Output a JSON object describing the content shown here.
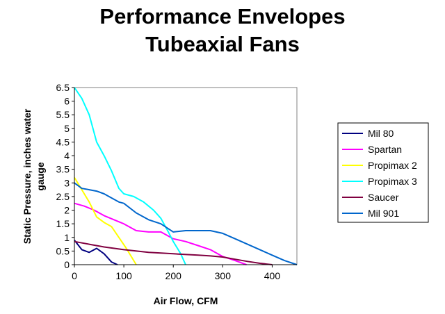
{
  "title_line1": "Performance Envelopes",
  "title_line2": "Tubeaxial Fans",
  "chart_data": {
    "type": "line",
    "title": "Performance Envelopes Tubeaxial Fans",
    "xlabel": "Air Flow, CFM",
    "ylabel_lines": [
      "Static Pressure, inches water",
      "gauge"
    ],
    "xlim": [
      0,
      450
    ],
    "ylim": [
      0,
      6.5
    ],
    "x_ticks": [
      "0",
      "100",
      "200",
      "300",
      "400"
    ],
    "x_tick_values": [
      0,
      100,
      200,
      300,
      400
    ],
    "y_ticks": [
      "0",
      "0.5",
      "1",
      "1.5",
      "2",
      "2.5",
      "3",
      "3.5",
      "4",
      "4.5",
      "5",
      "5.5",
      "6",
      "6.5"
    ],
    "y_tick_values": [
      0,
      0.5,
      1,
      1.5,
      2,
      2.5,
      3,
      3.5,
      4,
      4.5,
      5,
      5.5,
      6,
      6.5
    ],
    "grid": false,
    "legend_position": "right",
    "series": [
      {
        "name": "Mil 80",
        "color": "#000080",
        "points": [
          [
            0,
            0.9
          ],
          [
            15,
            0.55
          ],
          [
            30,
            0.45
          ],
          [
            45,
            0.6
          ],
          [
            60,
            0.4
          ],
          [
            75,
            0.1
          ],
          [
            87,
            0
          ]
        ]
      },
      {
        "name": "Spartan",
        "color": "#ff00ff",
        "points": [
          [
            0,
            2.25
          ],
          [
            20,
            2.15
          ],
          [
            40,
            2.0
          ],
          [
            60,
            1.8
          ],
          [
            80,
            1.65
          ],
          [
            100,
            1.5
          ],
          [
            125,
            1.25
          ],
          [
            150,
            1.2
          ],
          [
            175,
            1.2
          ],
          [
            200,
            0.95
          ],
          [
            225,
            0.85
          ],
          [
            250,
            0.7
          ],
          [
            275,
            0.55
          ],
          [
            300,
            0.3
          ],
          [
            325,
            0.15
          ],
          [
            348,
            0
          ]
        ]
      },
      {
        "name": "Propimax 2",
        "color": "#ffff00",
        "points": [
          [
            0,
            3.2
          ],
          [
            15,
            2.75
          ],
          [
            30,
            2.3
          ],
          [
            45,
            1.75
          ],
          [
            60,
            1.55
          ],
          [
            75,
            1.4
          ],
          [
            90,
            1.0
          ],
          [
            105,
            0.6
          ],
          [
            125,
            0
          ]
        ]
      },
      {
        "name": "Propimax 3",
        "color": "#00ffff",
        "points": [
          [
            0,
            6.5
          ],
          [
            15,
            6.1
          ],
          [
            30,
            5.5
          ],
          [
            45,
            4.5
          ],
          [
            60,
            4.0
          ],
          [
            75,
            3.45
          ],
          [
            90,
            2.8
          ],
          [
            100,
            2.6
          ],
          [
            120,
            2.5
          ],
          [
            140,
            2.3
          ],
          [
            160,
            2.0
          ],
          [
            175,
            1.7
          ],
          [
            190,
            1.2
          ],
          [
            200,
            0.85
          ],
          [
            215,
            0.4
          ],
          [
            225,
            0
          ]
        ]
      },
      {
        "name": "Saucer",
        "color": "#800040",
        "points": [
          [
            0,
            0.85
          ],
          [
            30,
            0.75
          ],
          [
            60,
            0.65
          ],
          [
            100,
            0.55
          ],
          [
            150,
            0.45
          ],
          [
            200,
            0.4
          ],
          [
            250,
            0.35
          ],
          [
            275,
            0.32
          ],
          [
            300,
            0.28
          ],
          [
            325,
            0.2
          ],
          [
            350,
            0.12
          ],
          [
            375,
            0.05
          ],
          [
            400,
            0
          ]
        ]
      },
      {
        "name": "Mil 901",
        "color": "#0066cc",
        "points": [
          [
            0,
            3.0
          ],
          [
            15,
            2.8
          ],
          [
            30,
            2.75
          ],
          [
            45,
            2.7
          ],
          [
            60,
            2.6
          ],
          [
            75,
            2.45
          ],
          [
            90,
            2.3
          ],
          [
            100,
            2.25
          ],
          [
            125,
            1.9
          ],
          [
            150,
            1.65
          ],
          [
            175,
            1.5
          ],
          [
            200,
            1.2
          ],
          [
            225,
            1.25
          ],
          [
            250,
            1.25
          ],
          [
            275,
            1.25
          ],
          [
            300,
            1.15
          ],
          [
            325,
            0.95
          ],
          [
            350,
            0.75
          ],
          [
            375,
            0.55
          ],
          [
            400,
            0.35
          ],
          [
            425,
            0.15
          ],
          [
            450,
            0
          ]
        ]
      }
    ]
  }
}
